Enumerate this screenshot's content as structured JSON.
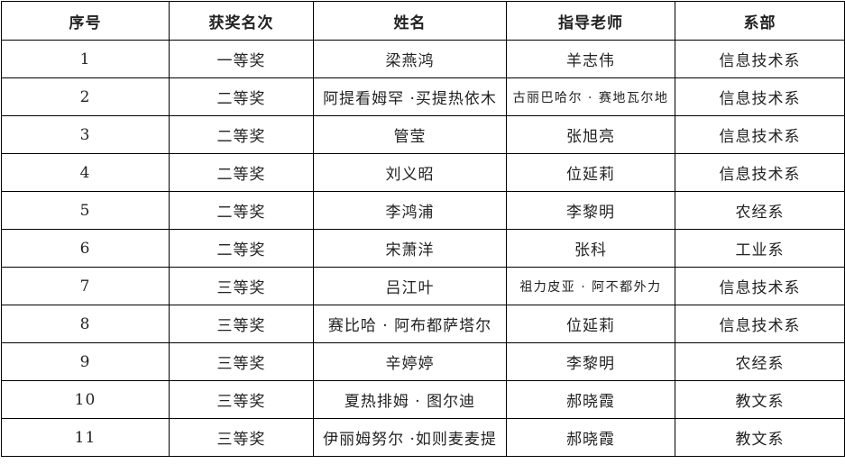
{
  "headers": [
    "序号",
    "获奖名次",
    "姓名",
    "指导老师",
    "系部"
  ],
  "rows": [
    {
      "no": "1",
      "rank": "一等奖",
      "name": "梁燕鸿",
      "teacher": "羊志伟",
      "dept": "信息技术系"
    },
    {
      "no": "2",
      "rank": "二等奖",
      "name": "阿提看姆罕 ·买提热依木",
      "teacher": "古丽巴哈尔 · 赛地瓦尔地",
      "dept": "信息技术系"
    },
    {
      "no": "3",
      "rank": "二等奖",
      "name": "管莹",
      "teacher": "张旭亮",
      "dept": "信息技术系"
    },
    {
      "no": "4",
      "rank": "二等奖",
      "name": "刘义昭",
      "teacher": "位延莉",
      "dept": "信息技术系"
    },
    {
      "no": "5",
      "rank": "二等奖",
      "name": "李鸿浦",
      "teacher": "李黎明",
      "dept": "农经系"
    },
    {
      "no": "6",
      "rank": "二等奖",
      "name": "宋萧洋",
      "teacher": "张科",
      "dept": "工业系"
    },
    {
      "no": "7",
      "rank": "三等奖",
      "name": "吕江叶",
      "teacher": "祖力皮亚 · 阿不都外力",
      "dept": "信息技术系"
    },
    {
      "no": "8",
      "rank": "三等奖",
      "name": "赛比哈 · 阿布都萨塔尔",
      "teacher": "位延莉",
      "dept": "信息技术系"
    },
    {
      "no": "9",
      "rank": "三等奖",
      "name": "辛婷婷",
      "teacher": "李黎明",
      "dept": "农经系"
    },
    {
      "no": "10",
      "rank": "三等奖",
      "name": "夏热排姆 · 图尔迪",
      "teacher": "郝晓霞",
      "dept": "教文系"
    },
    {
      "no": "11",
      "rank": "三等奖",
      "name": "伊丽姆努尔 ·如则麦麦提",
      "teacher": "郝晓霞",
      "dept": "教文系"
    }
  ]
}
